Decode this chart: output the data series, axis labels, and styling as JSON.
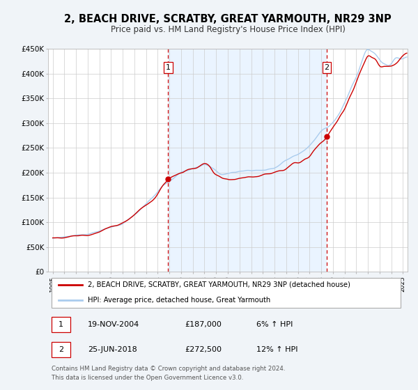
{
  "title": "2, BEACH DRIVE, SCRATBY, GREAT YARMOUTH, NR29 3NP",
  "subtitle": "Price paid vs. HM Land Registry's House Price Index (HPI)",
  "ylim": [
    0,
    450000
  ],
  "yticks": [
    0,
    50000,
    100000,
    150000,
    200000,
    250000,
    300000,
    350000,
    400000,
    450000
  ],
  "ytick_labels": [
    "£0",
    "£50K",
    "£100K",
    "£150K",
    "£200K",
    "£250K",
    "£300K",
    "£350K",
    "£400K",
    "£450K"
  ],
  "xlim_start": 1994.6,
  "xlim_end": 2025.4,
  "xtick_years": [
    1995,
    1996,
    1997,
    1998,
    1999,
    2000,
    2001,
    2002,
    2003,
    2004,
    2005,
    2006,
    2007,
    2008,
    2009,
    2010,
    2011,
    2012,
    2013,
    2014,
    2015,
    2016,
    2017,
    2018,
    2019,
    2020,
    2021,
    2022,
    2023,
    2024,
    2025
  ],
  "property_color": "#cc0000",
  "hpi_color": "#aaccee",
  "marker1_x": 2004.89,
  "marker1_y": 187000,
  "marker2_x": 2018.48,
  "marker2_y": 272500,
  "vline_color": "#cc0000",
  "shade_color": "#ddeeff",
  "legend_label1": "2, BEACH DRIVE, SCRATBY, GREAT YARMOUTH, NR29 3NP (detached house)",
  "legend_label2": "HPI: Average price, detached house, Great Yarmouth",
  "table_row1": [
    "1",
    "19-NOV-2004",
    "£187,000",
    "6% ↑ HPI"
  ],
  "table_row2": [
    "2",
    "25-JUN-2018",
    "£272,500",
    "12% ↑ HPI"
  ],
  "footer1": "Contains HM Land Registry data © Crown copyright and database right 2024.",
  "footer2": "This data is licensed under the Open Government Licence v3.0.",
  "background_color": "#f0f4f8",
  "plot_bg_color": "#ffffff",
  "grid_color": "#cccccc",
  "title_fontsize": 10.5,
  "subtitle_fontsize": 8.5
}
